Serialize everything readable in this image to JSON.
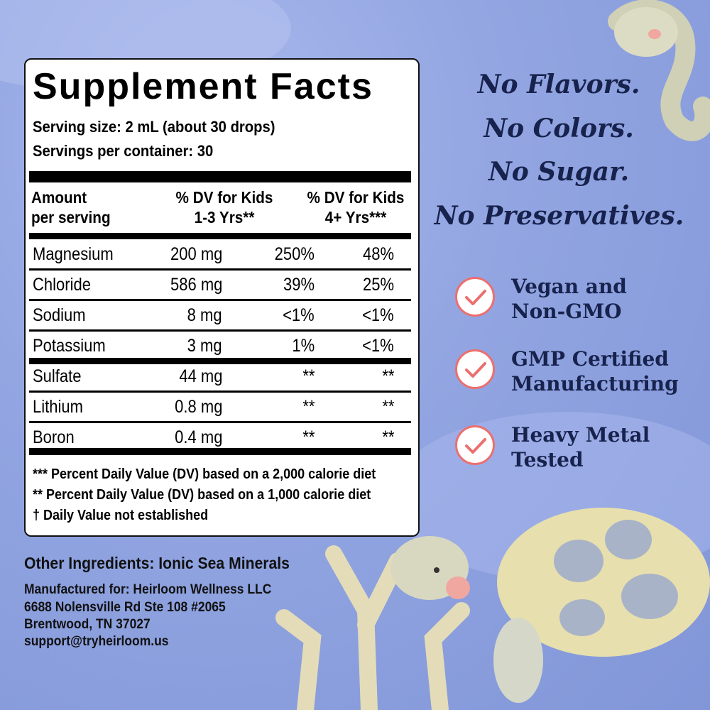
{
  "facts": {
    "title": "Supplement Facts",
    "serving_size": "Serving size: 2 mL (about 30 drops)",
    "servings_per_container": "Servings per container: 30",
    "headers": {
      "amount_1": "Amount",
      "amount_2": "per serving",
      "kids13_1": "% DV for Kids",
      "kids13_2": "1-3 Yrs**",
      "kids4_1": "% DV for Kids",
      "kids4_2": "4+ Yrs***"
    },
    "rows": [
      {
        "name": "Magnesium",
        "amount": "200 mg",
        "dv13": "250%",
        "dv4": "48%"
      },
      {
        "name": "Chloride",
        "amount": "586 mg",
        "dv13": "39%",
        "dv4": "25%"
      },
      {
        "name": "Sodium",
        "amount": "8 mg",
        "dv13": "<1%",
        "dv4": "<1%"
      },
      {
        "name": "Potassium",
        "amount": "3 mg",
        "dv13": "1%",
        "dv4": "<1%"
      },
      {
        "name": "Sulfate",
        "amount": "44 mg",
        "dv13": "**",
        "dv4": "**"
      },
      {
        "name": "Lithium",
        "amount": "0.8 mg",
        "dv13": "**",
        "dv4": "**"
      },
      {
        "name": "Boron",
        "amount": "0.4 mg",
        "dv13": "**",
        "dv4": "**"
      }
    ],
    "footnotes": [
      "*** Percent Daily Value (DV) based on a 2,000 calorie diet",
      "** Percent Daily Value (DV) based on a 1,000 calorie diet",
      "† Daily Value not established"
    ]
  },
  "other_ingredients": "Other Ingredients: Ionic Sea Minerals",
  "manufacturer": [
    "Manufactured for: Heirloom Wellness LLC",
    "6688 Nolensville Rd Ste 108 #2065",
    "Brentwood, TN 37027",
    "support@tryheirloom.us"
  ],
  "claims": [
    "No Flavors.",
    "No Colors.",
    "No Sugar.",
    "No Preservatives."
  ],
  "features": [
    {
      "line1": "Vegan and",
      "line2": "Non-GMO",
      "icon": "check-circle-icon"
    },
    {
      "line1": "GMP Certified",
      "line2": "Manufacturing",
      "icon": "check-circle-icon"
    },
    {
      "line1": "Heavy Metal",
      "line2": "Tested",
      "icon": "check-circle-icon"
    }
  ],
  "colors": {
    "background": "#93a6e2",
    "text_navy": "#17224d",
    "check_accent": "#ec6f6f"
  }
}
